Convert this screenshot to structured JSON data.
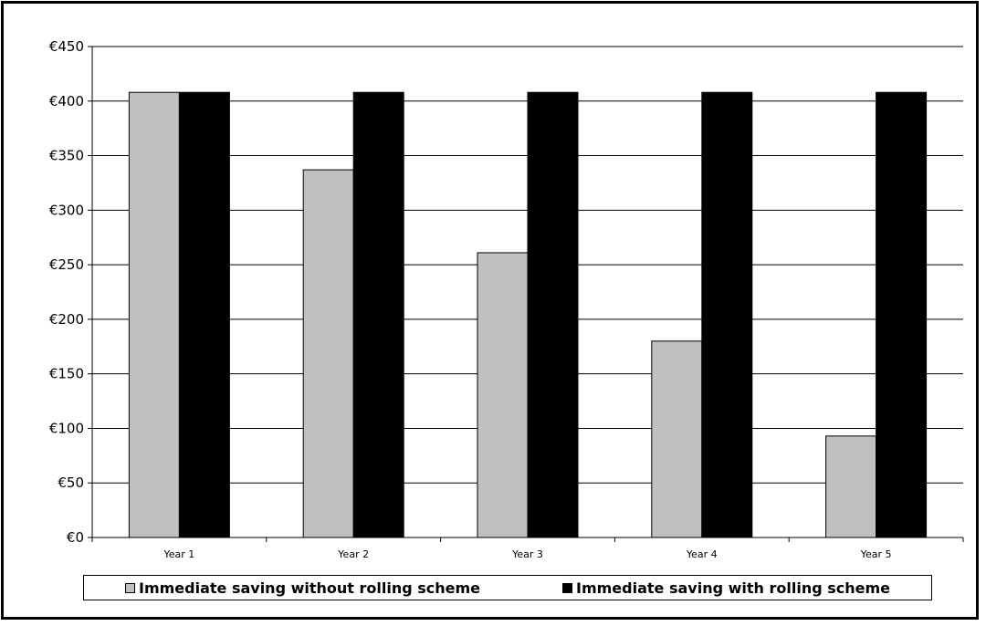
{
  "chart_data": {
    "type": "bar",
    "categories": [
      "Year 1",
      "Year 2",
      "Year 3",
      "Year 4",
      "Year 5"
    ],
    "series": [
      {
        "name": "Immediate saving without rolling scheme",
        "values": [
          408,
          337,
          261,
          180,
          93
        ],
        "color": "#c0c0c0"
      },
      {
        "name": "Immediate saving with rolling scheme",
        "values": [
          408,
          408,
          408,
          408,
          408
        ],
        "color": "#000000"
      }
    ],
    "title": "",
    "xlabel": "",
    "ylabel": "",
    "ylim": [
      0,
      450
    ],
    "yticks": [
      0,
      50,
      100,
      150,
      200,
      250,
      300,
      350,
      400,
      450
    ],
    "ytick_labels": [
      "€0",
      "€50",
      "€100",
      "€150",
      "€200",
      "€250",
      "€300",
      "€350",
      "€400",
      "€450"
    ],
    "grid": true,
    "legend_position": "bottom"
  }
}
